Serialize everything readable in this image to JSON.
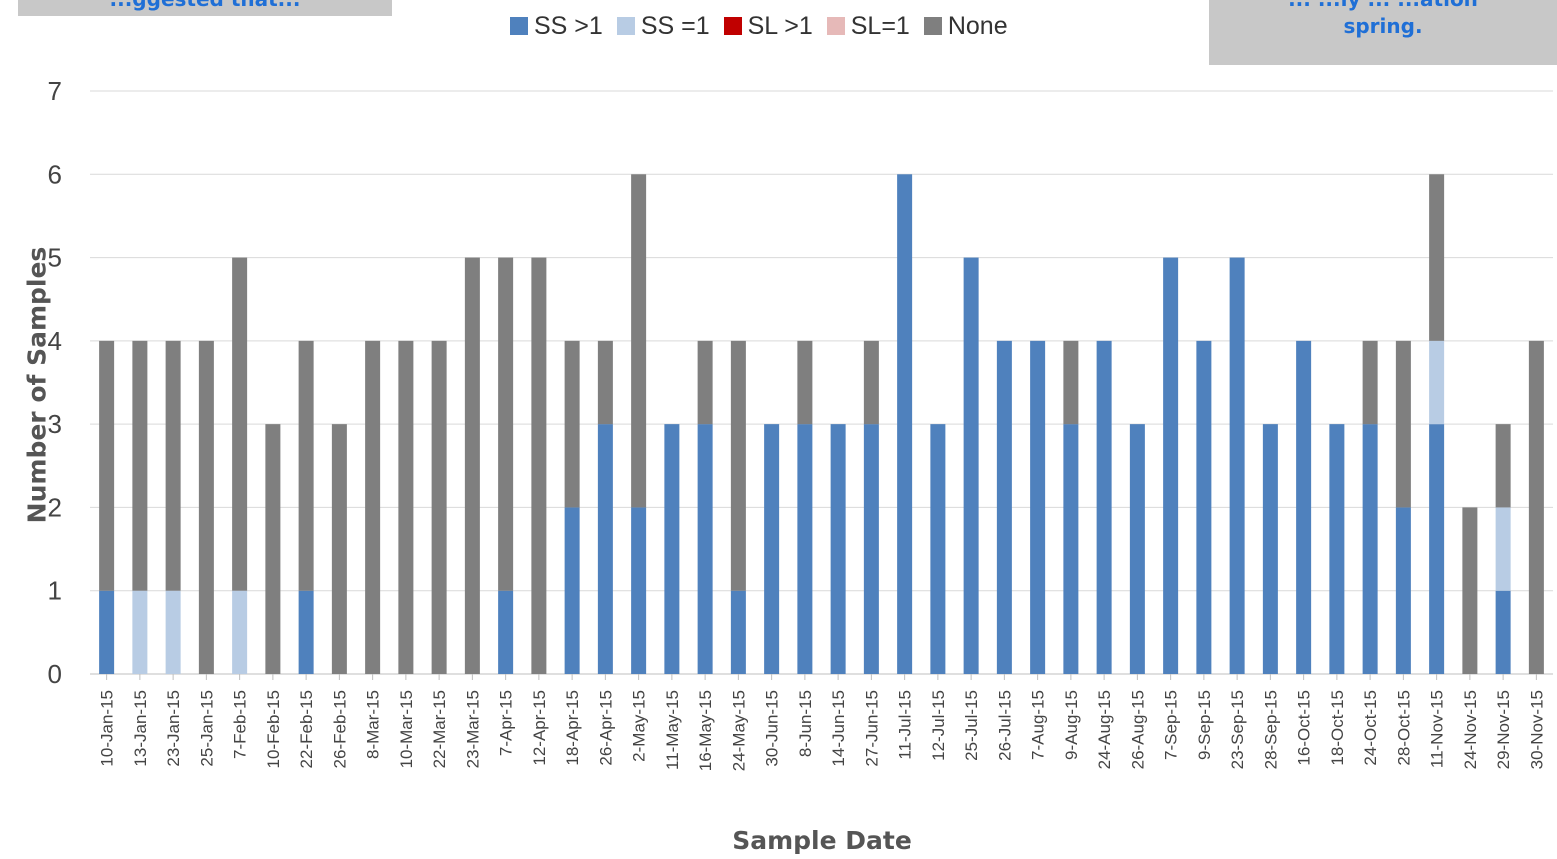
{
  "callouts": {
    "left": "...ggested that...",
    "right_line1": "... ...ly ... ...ation",
    "right_line2": "spring."
  },
  "colors": {
    "SS_gt1": "#4f81bd",
    "SS_eq1": "#b8cce4",
    "SL_gt1": "#c00000",
    "SL_eq1": "#e6b9b8",
    "None": "#7f7f7f",
    "callout_text": "#1f6fd6",
    "callout_bg": "#c8c8c8"
  },
  "chart_data": {
    "type": "bar",
    "stacked": true,
    "title": "",
    "xlabel": "Sample Date",
    "ylabel": "Number of Samples",
    "ylim": [
      0,
      7
    ],
    "yticks": [
      0,
      1,
      2,
      3,
      4,
      5,
      6,
      7
    ],
    "grid": true,
    "legend_position": "top-center",
    "categories": [
      "10-Jan-15",
      "13-Jan-15",
      "23-Jan-15",
      "25-Jan-15",
      "7-Feb-15",
      "10-Feb-15",
      "22-Feb-15",
      "26-Feb-15",
      "8-Mar-15",
      "10-Mar-15",
      "22-Mar-15",
      "23-Mar-15",
      "7-Apr-15",
      "12-Apr-15",
      "18-Apr-15",
      "26-Apr-15",
      "2-May-15",
      "11-May-15",
      "16-May-15",
      "24-May-15",
      "30-Jun-15",
      "8-Jun-15",
      "14-Jun-15",
      "27-Jun-15",
      "11-Jul-15",
      "12-Jul-15",
      "25-Jul-15",
      "26-Jul-15",
      "7-Aug-15",
      "9-Aug-15",
      "24-Aug-15",
      "26-Aug-15",
      "7-Sep-15",
      "9-Sep-15",
      "23-Sep-15",
      "28-Sep-15",
      "16-Oct-15",
      "18-Oct-15",
      "24-Oct-15",
      "28-Oct-15",
      "11-Nov-15",
      "24-Nov-15",
      "29-Nov-15",
      "30-Nov-15"
    ],
    "series": [
      {
        "name": "SS >1",
        "key": "SS_gt1",
        "values": [
          1,
          0,
          0,
          0,
          0,
          0,
          1,
          0,
          0,
          0,
          0,
          0,
          1,
          0,
          2,
          3,
          2,
          3,
          3,
          1,
          3,
          3,
          3,
          3,
          6,
          3,
          5,
          4,
          4,
          3,
          4,
          3,
          5,
          4,
          5,
          3,
          4,
          3,
          3,
          2,
          3,
          0,
          1,
          0
        ]
      },
      {
        "name": "SS =1",
        "key": "SS_eq1",
        "values": [
          0,
          1,
          1,
          0,
          1,
          0,
          0,
          0,
          0,
          0,
          0,
          0,
          0,
          0,
          0,
          0,
          0,
          0,
          0,
          0,
          0,
          0,
          0,
          0,
          0,
          0,
          0,
          0,
          0,
          0,
          0,
          0,
          0,
          0,
          0,
          0,
          0,
          0,
          0,
          0,
          1,
          0,
          1,
          0
        ]
      },
      {
        "name": "SL >1",
        "key": "SL_gt1",
        "values": [
          0,
          0,
          0,
          0,
          0,
          0,
          0,
          0,
          0,
          0,
          0,
          0,
          0,
          0,
          0,
          0,
          0,
          0,
          0,
          0,
          0,
          0,
          0,
          0,
          0,
          0,
          0,
          0,
          0,
          0,
          0,
          0,
          0,
          0,
          0,
          0,
          0,
          0,
          0,
          0,
          0,
          0,
          0,
          0
        ]
      },
      {
        "name": "SL=1",
        "key": "SL_eq1",
        "values": [
          0,
          0,
          0,
          0,
          0,
          0,
          0,
          0,
          0,
          0,
          0,
          0,
          0,
          0,
          0,
          0,
          0,
          0,
          0,
          0,
          0,
          0,
          0,
          0,
          0,
          0,
          0,
          0,
          0,
          0,
          0,
          0,
          0,
          0,
          0,
          0,
          0,
          0,
          0,
          0,
          0,
          0,
          0,
          0
        ]
      },
      {
        "name": "None",
        "key": "None",
        "values": [
          3,
          3,
          3,
          4,
          4,
          3,
          3,
          3,
          4,
          4,
          4,
          5,
          4,
          5,
          2,
          1,
          4,
          0,
          1,
          3,
          0,
          1,
          0,
          1,
          0,
          0,
          0,
          0,
          0,
          1,
          0,
          0,
          0,
          0,
          0,
          0,
          0,
          0,
          1,
          2,
          2,
          2,
          1,
          4
        ]
      }
    ]
  }
}
